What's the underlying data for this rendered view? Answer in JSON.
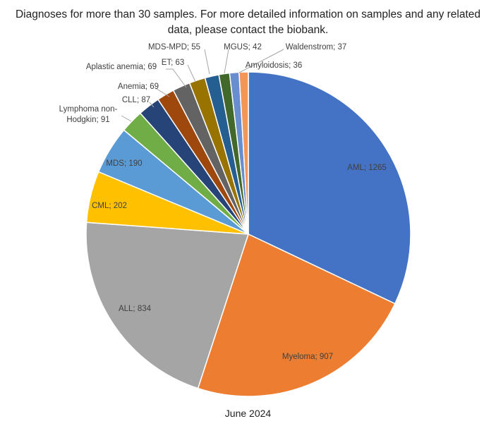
{
  "chart_data": {
    "type": "pie",
    "title_lines": [
      "Diagnoses for more than 30 samples. For more detailed information on samples and any related",
      "data, please contact the biobank."
    ],
    "caption": "June 2024",
    "slices": [
      {
        "name": "AML",
        "value": 1265,
        "color": "#4472C4",
        "label": "AML; 1265"
      },
      {
        "name": "Myeloma",
        "value": 907,
        "color": "#ED7D31",
        "label": "Myeloma; 907"
      },
      {
        "name": "ALL",
        "value": 834,
        "color": "#A5A5A5",
        "label": "ALL; 834"
      },
      {
        "name": "CML",
        "value": 202,
        "color": "#FFC000",
        "label": "CML; 202"
      },
      {
        "name": "MDS",
        "value": 190,
        "color": "#5B9BD5",
        "label": "MDS; 190"
      },
      {
        "name": "Lymphoma non-Hodgkin",
        "value": 91,
        "color": "#70AD47",
        "label_lines": [
          "Lymphoma non-",
          "Hodgkin; 91"
        ]
      },
      {
        "name": "CLL",
        "value": 87,
        "color": "#264478",
        "label": "CLL; 87"
      },
      {
        "name": "Anemia",
        "value": 69,
        "color": "#9E480E",
        "label": "Anemia; 69"
      },
      {
        "name": "Aplastic anemia",
        "value": 69,
        "color": "#636363",
        "label": "Aplastic anemia; 69"
      },
      {
        "name": "ET",
        "value": 63,
        "color": "#997300",
        "label": "ET; 63"
      },
      {
        "name": "MDS-MPD",
        "value": 55,
        "color": "#255E91",
        "label": "MDS-MPD; 55"
      },
      {
        "name": "MGUS",
        "value": 42,
        "color": "#43682B",
        "label": "MGUS; 42"
      },
      {
        "name": "Waldenstrom",
        "value": 37,
        "color": "#698ED0",
        "label": "Waldenstrom; 37"
      },
      {
        "name": "Amyloidosis",
        "value": 36,
        "color": "#F1975A",
        "label": "Amyloidosis; 36"
      }
    ]
  }
}
